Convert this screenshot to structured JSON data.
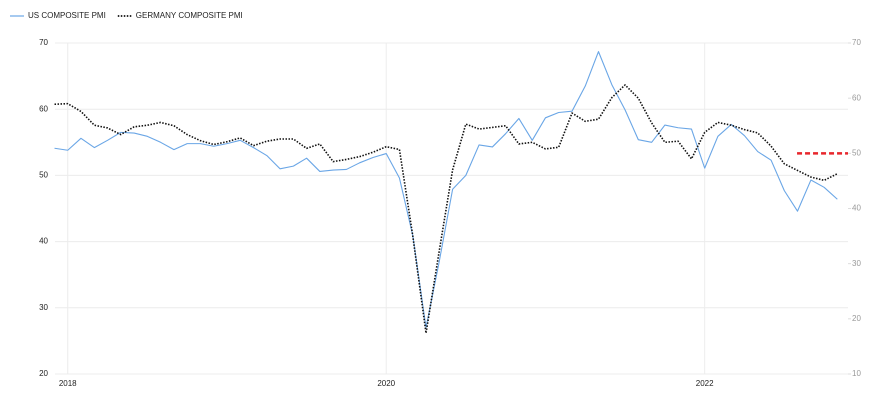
{
  "chart_data": {
    "type": "line",
    "legend": "top-left",
    "grid": true,
    "x": [
      2017.917,
      2018.0,
      2018.083,
      2018.167,
      2018.25,
      2018.333,
      2018.417,
      2018.5,
      2018.583,
      2018.667,
      2018.75,
      2018.833,
      2018.917,
      2019.0,
      2019.083,
      2019.167,
      2019.25,
      2019.333,
      2019.417,
      2019.5,
      2019.583,
      2019.667,
      2019.75,
      2019.833,
      2019.917,
      2020.0,
      2020.083,
      2020.167,
      2020.25,
      2020.333,
      2020.417,
      2020.5,
      2020.583,
      2020.667,
      2020.75,
      2020.833,
      2020.917,
      2021.0,
      2021.083,
      2021.167,
      2021.25,
      2021.333,
      2021.417,
      2021.5,
      2021.583,
      2021.667,
      2021.75,
      2021.833,
      2021.917,
      2022.0,
      2022.083,
      2022.167,
      2022.25,
      2022.333,
      2022.417,
      2022.5,
      2022.583,
      2022.667,
      2022.75,
      2022.833
    ],
    "xlim": [
      2017.92,
      2022.9
    ],
    "xticks": [
      2018,
      2020,
      2022
    ],
    "ylim": [
      20,
      70
    ],
    "yticks": [
      20,
      30,
      40,
      50,
      60,
      70
    ],
    "y2lim": [
      10,
      70
    ],
    "y2ticks": [
      10,
      20,
      30,
      40,
      50,
      60,
      70
    ],
    "series": [
      {
        "name": "US COMPOSITE PMI",
        "color": "#6aa6e6",
        "style": "solid",
        "values": [
          54.1,
          53.8,
          55.6,
          54.2,
          55.3,
          56.5,
          56.4,
          55.9,
          55.0,
          53.9,
          54.8,
          54.8,
          54.4,
          54.8,
          55.3,
          54.2,
          53.0,
          51.0,
          51.4,
          52.6,
          50.6,
          50.8,
          50.9,
          51.9,
          52.7,
          53.3,
          49.6,
          40.9,
          27.0,
          37.0,
          47.9,
          50.0,
          54.6,
          54.3,
          56.3,
          58.6,
          55.3,
          58.7,
          59.5,
          59.7,
          63.5,
          68.7,
          63.7,
          59.9,
          55.4,
          55.0,
          57.6,
          57.2,
          57.0,
          51.1,
          55.9,
          57.7,
          56.0,
          53.6,
          52.3,
          47.7,
          44.6,
          49.3,
          48.2,
          46.4
        ]
      },
      {
        "name": "GERMANY COMPOSITE PMI",
        "color": "#111111",
        "style": "dotted",
        "axis": "y2",
        "values": [
          58.9,
          59.0,
          57.6,
          55.1,
          54.6,
          53.4,
          54.8,
          55.1,
          55.6,
          55.0,
          53.4,
          52.3,
          51.6,
          52.1,
          52.8,
          51.4,
          52.2,
          52.6,
          52.6,
          50.9,
          51.7,
          48.5,
          48.9,
          49.4,
          50.2,
          51.2,
          50.7,
          35.0,
          17.4,
          32.3,
          47.0,
          55.3,
          54.4,
          54.7,
          55.0,
          51.7,
          52.0,
          50.8,
          51.1,
          57.3,
          55.8,
          56.2,
          60.1,
          62.4,
          60.0,
          55.5,
          52.0,
          52.2,
          49.0,
          53.8,
          55.6,
          55.1,
          54.3,
          53.7,
          51.3,
          48.1,
          46.9,
          45.7,
          45.1,
          46.3
        ]
      }
    ],
    "reference_line": {
      "value": 50,
      "axis": "y2",
      "from": 2022.58,
      "color": "#e8262b"
    }
  }
}
